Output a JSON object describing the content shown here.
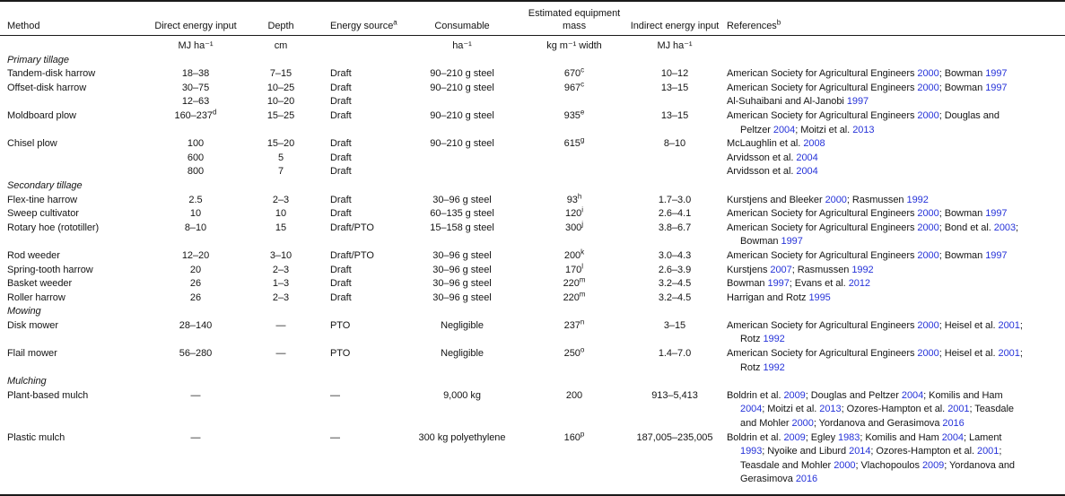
{
  "colors": {
    "text": "#151515",
    "citation_link": "#2633d9",
    "rule": "#1a1a1a",
    "background": "#ffffff"
  },
  "table": {
    "columns": [
      {
        "id": "method",
        "label": "Method",
        "sup": "",
        "unit": ""
      },
      {
        "id": "direct",
        "label": "Direct energy input",
        "sup": "",
        "unit": "MJ ha⁻¹"
      },
      {
        "id": "depth",
        "label": "Depth",
        "sup": "",
        "unit": "cm"
      },
      {
        "id": "source",
        "label": "Energy source",
        "sup": "a",
        "unit": ""
      },
      {
        "id": "consumable",
        "label": "Consumable",
        "sup": "",
        "unit": "ha⁻¹"
      },
      {
        "id": "mass",
        "label": "Estimated equipment mass",
        "sup": "",
        "unit": "kg m⁻¹ width"
      },
      {
        "id": "indirect",
        "label": "Indirect energy input",
        "sup": "",
        "unit": "MJ ha⁻¹"
      },
      {
        "id": "refs",
        "label": "References",
        "sup": "b",
        "unit": ""
      }
    ],
    "sections": [
      {
        "title": "Primary tillage",
        "rows": [
          {
            "method": "Tandem-disk harrow",
            "direct": "18–38",
            "direct_sup": "",
            "depth": "7–15",
            "source": "Draft",
            "consumable": "90–210 g steel",
            "mass": "670",
            "mass_sup": "c",
            "indirect": "10–12",
            "refs": "American Society for Agricultural Engineers 2000; Bowman 1997"
          },
          {
            "method": "Offset-disk harrow",
            "direct": "30–75",
            "direct_sup": "",
            "depth": "10–25",
            "source": "Draft",
            "consumable": "90–210 g steel",
            "mass": "967",
            "mass_sup": "c",
            "indirect": "13–15",
            "refs": "American Society for Agricultural Engineers 2000; Bowman 1997"
          },
          {
            "method": "",
            "direct": "12–63",
            "direct_sup": "",
            "depth": "10–20",
            "source": "Draft",
            "consumable": "",
            "mass": "",
            "mass_sup": "",
            "indirect": "",
            "refs": "Al-Suhaibani and Al-Janobi 1997"
          },
          {
            "method": "Moldboard plow",
            "direct": "160–237",
            "direct_sup": "d",
            "depth": "15–25",
            "source": "Draft",
            "consumable": "90–210 g steel",
            "mass": "935",
            "mass_sup": "e",
            "indirect": "13–15",
            "refs": "American Society for Agricultural Engineers 2000; Douglas and\nPeltzer 2004; Moitzi et al. 2013"
          },
          {
            "method": "Chisel plow",
            "direct": "100",
            "direct_sup": "",
            "depth": "15–20",
            "source": "Draft",
            "consumable": "90–210 g steel",
            "mass": "615",
            "mass_sup": "g",
            "indirect": "8–10",
            "refs": "McLaughlin et al. 2008"
          },
          {
            "method": "",
            "direct": "600",
            "direct_sup": "",
            "depth": "5",
            "source": "Draft",
            "consumable": "",
            "mass": "",
            "mass_sup": "",
            "indirect": "",
            "refs": "Arvidsson et al. 2004"
          },
          {
            "method": "",
            "direct": "800",
            "direct_sup": "",
            "depth": "7",
            "source": "Draft",
            "consumable": "",
            "mass": "",
            "mass_sup": "",
            "indirect": "",
            "refs": "Arvidsson et al. 2004"
          }
        ]
      },
      {
        "title": "Secondary tillage",
        "rows": [
          {
            "method": "Flex-tine harrow",
            "direct": "2.5",
            "direct_sup": "",
            "depth": "2–3",
            "source": "Draft",
            "consumable": "30–96 g steel",
            "mass": "93",
            "mass_sup": "h",
            "indirect": "1.7–3.0",
            "refs": "Kurstjens and Bleeker 2000; Rasmussen 1992"
          },
          {
            "method": "Sweep cultivator",
            "direct": "10",
            "direct_sup": "",
            "depth": "10",
            "source": "Draft",
            "consumable": "60–135 g steel",
            "mass": "120",
            "mass_sup": "i",
            "indirect": "2.6–4.1",
            "refs": "American Society for Agricultural Engineers 2000; Bowman 1997"
          },
          {
            "method": "Rotary hoe (rototiller)",
            "direct": "8–10",
            "direct_sup": "",
            "depth": "15",
            "source": "Draft/PTO",
            "consumable": "15–158 g steel",
            "mass": "300",
            "mass_sup": "j",
            "indirect": "3.8–6.7",
            "refs": "American Society for Agricultural Engineers 2000; Bond et al. 2003;\nBowman 1997"
          },
          {
            "method": "Rod weeder",
            "direct": "12–20",
            "direct_sup": "",
            "depth": "3–10",
            "source": "Draft/PTO",
            "consumable": "30–96 g steel",
            "mass": "200",
            "mass_sup": "k",
            "indirect": "3.0–4.3",
            "refs": "American Society for Agricultural Engineers 2000; Bowman 1997"
          },
          {
            "method": "Spring-tooth harrow",
            "direct": "20",
            "direct_sup": "",
            "depth": "2–3",
            "source": "Draft",
            "consumable": "30–96 g steel",
            "mass": "170",
            "mass_sup": "l",
            "indirect": "2.6–3.9",
            "refs": "Kurstjens 2007; Rasmussen 1992"
          },
          {
            "method": "Basket weeder",
            "direct": "26",
            "direct_sup": "",
            "depth": "1–3",
            "source": "Draft",
            "consumable": "30–96 g steel",
            "mass": "220",
            "mass_sup": "m",
            "indirect": "3.2–4.5",
            "refs": "Bowman 1997; Evans et al. 2012"
          },
          {
            "method": "Roller harrow",
            "direct": "26",
            "direct_sup": "",
            "depth": "2–3",
            "source": "Draft",
            "consumable": "30–96 g steel",
            "mass": "220",
            "mass_sup": "m",
            "indirect": "3.2–4.5",
            "refs": "Harrigan and Rotz 1995"
          }
        ]
      },
      {
        "title": "Mowing",
        "rows": [
          {
            "method": "Disk mower",
            "direct": "28–140",
            "direct_sup": "",
            "depth": "—",
            "source": "PTO",
            "consumable": "Negligible",
            "mass": "237",
            "mass_sup": "n",
            "indirect": "3–15",
            "refs": "American Society for Agricultural Engineers 2000; Heisel et al. 2001;\nRotz 1992"
          },
          {
            "method": "Flail mower",
            "direct": "56–280",
            "direct_sup": "",
            "depth": "—",
            "source": "PTO",
            "consumable": "Negligible",
            "mass": "250",
            "mass_sup": "o",
            "indirect": "1.4–7.0",
            "refs": "American Society for Agricultural Engineers 2000; Heisel et al. 2001;\nRotz 1992"
          }
        ]
      },
      {
        "title": "Mulching",
        "rows": [
          {
            "method": "Plant-based mulch",
            "direct": "—",
            "direct_sup": "",
            "depth": "",
            "source": "—",
            "consumable": "9,000 kg",
            "mass": "200",
            "mass_sup": "",
            "indirect": "913–5,413",
            "refs": "Boldrin et al. 2009; Douglas and Peltzer 2004; Komilis and Ham\n2004; Moitzi et al. 2013; Ozores-Hampton et al. 2001; Teasdale\nand Mohler 2000; Yordanova and Gerasimova 2016"
          },
          {
            "method": "Plastic mulch",
            "direct": "—",
            "direct_sup": "",
            "depth": "",
            "source": "—",
            "consumable": "300 kg polyethylene",
            "mass": "160",
            "mass_sup": "p",
            "indirect": "187,005–235,005",
            "refs": "Boldrin et al. 2009; Egley 1983; Komilis and Ham 2004; Lament\n1993; Nyoike and Liburd 2014; Ozores-Hampton et al. 2001;\nTeasdale and Mohler 2000; Vlachopoulos 2009; Yordanova and\nGerasimova 2016"
          }
        ]
      }
    ]
  }
}
